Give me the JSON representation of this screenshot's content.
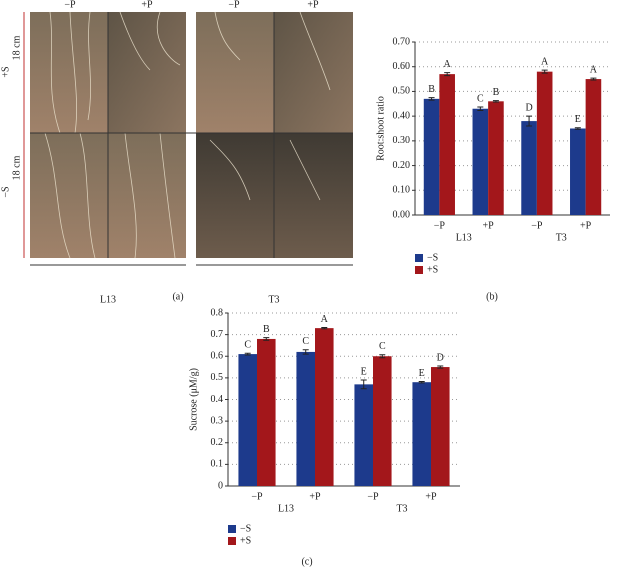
{
  "panel_a": {
    "column_labels": [
      "−P",
      "+P",
      "−P",
      "+P"
    ],
    "row_labels": [
      "+S",
      "−S"
    ],
    "scale_labels": [
      "18 cm",
      "18 cm"
    ],
    "group_labels": [
      "L13",
      "T3"
    ],
    "caption": "(a)"
  },
  "chart_data": [
    {
      "type": "bar",
      "caption": "(b)",
      "y_label": "Root:shoot ratio",
      "categories": [
        "−P",
        "+P",
        "−P",
        "+P"
      ],
      "group_labels": [
        "L13",
        "T3"
      ],
      "ylim": [
        0,
        0.7
      ],
      "yticks": [
        {
          "value": 0,
          "label": "0.00"
        },
        {
          "value": 0.1,
          "label": "0.10"
        },
        {
          "value": 0.2,
          "label": "0.20"
        },
        {
          "value": 0.3,
          "label": "0.30"
        },
        {
          "value": 0.4,
          "label": "0.40"
        },
        {
          "value": 0.5,
          "label": "0.50"
        },
        {
          "value": 0.6,
          "label": "0.60"
        },
        {
          "value": 0.7,
          "label": "0.70"
        }
      ],
      "grid": true,
      "legend": "below",
      "series": [
        {
          "name": "−S",
          "color": "#1d3a8c",
          "values": [
            0.47,
            0.43,
            0.38,
            0.35
          ],
          "errors": [
            0.005,
            0.007,
            0.02,
            0.003
          ],
          "letters": [
            "B",
            "C",
            "D",
            "E"
          ]
        },
        {
          "name": "+S",
          "color": "#a3171b",
          "values": [
            0.57,
            0.46,
            0.58,
            0.55
          ],
          "errors": [
            0.006,
            0.003,
            0.006,
            0.004
          ],
          "letters": [
            "A",
            "B",
            "A",
            "A"
          ]
        }
      ]
    },
    {
      "type": "bar",
      "caption": "(c)",
      "y_label": "Sucrose (μM/g)",
      "categories": [
        "−P",
        "+P",
        "−P",
        "+P"
      ],
      "group_labels": [
        "L13",
        "T3"
      ],
      "ylim": [
        0,
        0.8
      ],
      "yticks": [
        0,
        0.1,
        0.2,
        0.3,
        0.4,
        0.5,
        0.6,
        0.7,
        0.8
      ],
      "grid": true,
      "legend": "below",
      "series": [
        {
          "name": "−S",
          "color": "#1d3a8c",
          "values": [
            0.61,
            0.62,
            0.47,
            0.48
          ],
          "errors": [
            0.004,
            0.01,
            0.02,
            0.003
          ],
          "letters": [
            "C",
            "C",
            "E",
            "E"
          ]
        },
        {
          "name": "+S",
          "color": "#a3171b",
          "values": [
            0.68,
            0.73,
            0.6,
            0.55
          ],
          "errors": [
            0.006,
            0.003,
            0.007,
            0.005
          ],
          "letters": [
            "B",
            "A",
            "C",
            "D"
          ]
        }
      ]
    }
  ]
}
